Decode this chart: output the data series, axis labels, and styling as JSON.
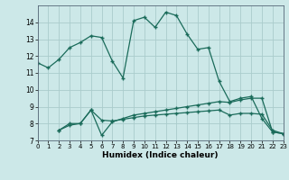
{
  "line1_x": [
    0,
    1,
    2,
    3,
    4,
    5,
    6,
    7,
    8,
    9,
    10,
    11,
    12,
    13,
    14,
    15,
    16,
    17,
    18,
    19,
    20,
    21,
    22,
    23
  ],
  "line1_y": [
    11.6,
    11.3,
    11.8,
    12.5,
    12.8,
    13.2,
    13.1,
    11.7,
    10.7,
    14.1,
    14.3,
    13.7,
    14.6,
    14.4,
    13.3,
    12.4,
    12.5,
    10.5,
    9.3,
    9.5,
    9.6,
    8.3,
    7.5,
    7.4
  ],
  "line2_x": [
    2,
    3,
    4,
    5,
    6,
    7,
    8,
    9,
    10,
    11,
    12,
    13,
    14,
    15,
    16,
    17,
    18,
    19,
    20,
    21,
    22,
    23
  ],
  "line2_y": [
    7.6,
    8.0,
    8.0,
    8.8,
    7.3,
    8.1,
    8.3,
    8.5,
    8.6,
    8.7,
    8.8,
    8.9,
    9.0,
    9.1,
    9.2,
    9.3,
    9.25,
    9.4,
    9.5,
    9.5,
    7.5,
    7.4
  ],
  "line3_x": [
    2,
    3,
    4,
    5,
    6,
    7,
    8,
    9,
    10,
    11,
    12,
    13,
    14,
    15,
    16,
    17,
    18,
    19,
    20,
    21,
    22,
    23
  ],
  "line3_y": [
    7.6,
    7.9,
    8.0,
    8.8,
    8.2,
    8.15,
    8.25,
    8.35,
    8.45,
    8.5,
    8.55,
    8.6,
    8.65,
    8.7,
    8.75,
    8.8,
    8.5,
    8.6,
    8.6,
    8.55,
    7.6,
    7.4
  ],
  "color": "#1a6b5a",
  "bg_color": "#cce8e8",
  "grid_color": "#aacccc",
  "xlabel": "Humidex (Indice chaleur)",
  "ylim": [
    7,
    15
  ],
  "xlim": [
    0,
    23
  ],
  "yticks": [
    7,
    8,
    9,
    10,
    11,
    12,
    13,
    14
  ],
  "xticks": [
    0,
    1,
    2,
    3,
    4,
    5,
    6,
    7,
    8,
    9,
    10,
    11,
    12,
    13,
    14,
    15,
    16,
    17,
    18,
    19,
    20,
    21,
    22,
    23
  ]
}
